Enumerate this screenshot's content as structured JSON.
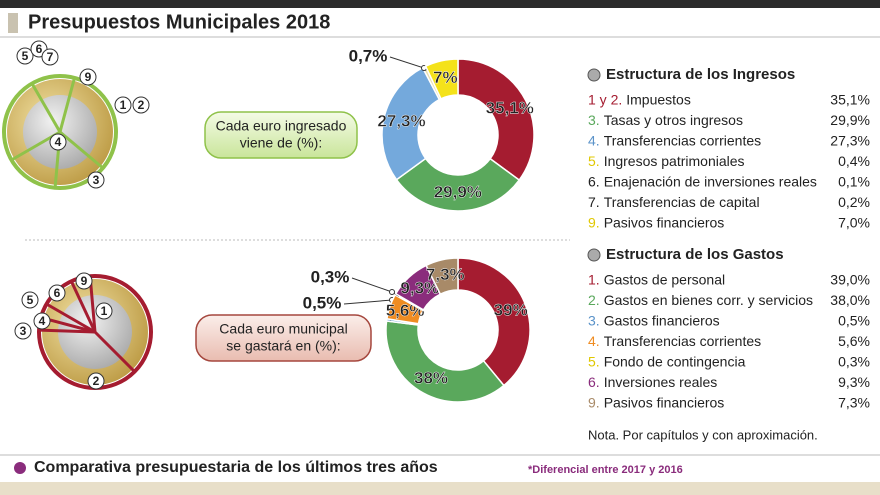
{
  "title": "Presupuestos Municipales 2018",
  "chart_data": [
    {
      "type": "pie",
      "values": [
        35.1,
        29.9,
        27.3,
        0.7,
        7
      ],
      "value_labels": [
        "35,1%",
        "29,9%",
        "27,3%",
        "0,7%",
        "7%"
      ],
      "colors": [
        "#a51c30",
        "#5aa85c",
        "#74a9dc",
        "#e8e0b0",
        "#f4e21a"
      ]
    },
    {
      "type": "pie",
      "values": [
        39,
        38,
        0.5,
        5.6,
        0.3,
        9.3,
        7.3
      ],
      "value_labels": [
        "39%",
        "38%",
        "0,5%",
        "5,6%",
        "0,3%",
        "9,3%",
        "7,3%"
      ],
      "colors": [
        "#a51c30",
        "#5aa85c",
        "#74a9dc",
        "#ef8c22",
        "#f4e21a",
        "#8a2c7c",
        "#a88a68"
      ]
    }
  ],
  "coin_ingresos": {
    "bubble": "Cada euro ingresado viene de (%):",
    "labels": [
      "5",
      "6",
      "7",
      "9",
      "1",
      "2",
      "4",
      "3"
    ]
  },
  "coin_gastos": {
    "bubble": "Cada euro municipal se gastará en (%):",
    "labels": [
      "9",
      "6",
      "5",
      "4",
      "3",
      "1",
      "2"
    ]
  },
  "ingresos": {
    "heading": "Estructura de los Ingresos",
    "rows": [
      [
        "1 y 2.",
        "Impuestos",
        "35,1%"
      ],
      [
        "3.",
        "Tasas y otros ingresos",
        "29,9%"
      ],
      [
        "4.",
        "Transferencias corrientes",
        "27,3%"
      ],
      [
        "5.",
        "Ingresos patrimoniales",
        "0,4%"
      ],
      [
        "6.",
        "Enajenación de inversiones reales",
        "0,1%"
      ],
      [
        "7.",
        "Transferencias de capital",
        "0,2%"
      ],
      [
        "9.",
        "Pasivos financieros",
        "7,0%"
      ]
    ]
  },
  "gastos": {
    "heading": "Estructura de los Gastos",
    "rows": [
      [
        "1.",
        "Gastos de personal",
        "39,0%"
      ],
      [
        "2.",
        "Gastos en bienes corr. y servicios",
        "38,0%"
      ],
      [
        "3.",
        "Gastos financieros",
        "0,5%"
      ],
      [
        "4.",
        "Transferencias corrientes",
        "5,6%"
      ],
      [
        "5.",
        "Fondo de contingencia",
        "0,3%"
      ],
      [
        "6.",
        "Inversiones reales",
        "9,3%"
      ],
      [
        "9.",
        "Pasivos financieros",
        "7,3%"
      ]
    ],
    "note": "Nota. Por capítulos y con aproximación."
  },
  "footer": {
    "heading": "Comparativa presupuestaria de los últimos tres años",
    "note": "*Diferencial entre 2017 y 2016"
  }
}
